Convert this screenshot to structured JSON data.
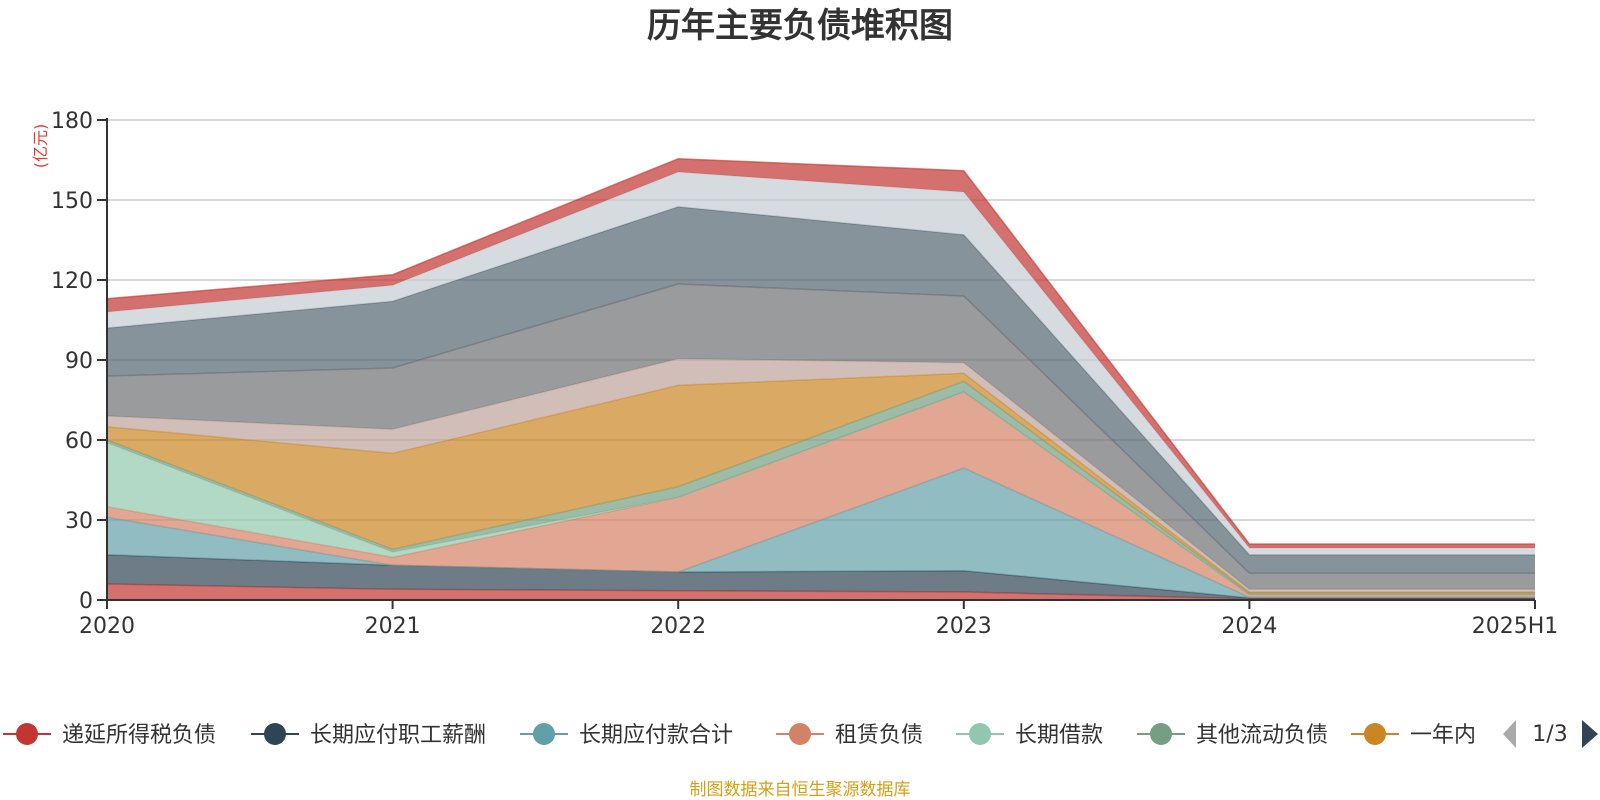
{
  "colors": {
    "grid": "#cccccc",
    "axis": "#333333",
    "source": "#d4a017",
    "unit": "#e53935",
    "page_prev": "#aaaaaa",
    "page_next": "#2f4554"
  },
  "chart_data": {
    "type": "area",
    "stacked": true,
    "title": "历年主要负债堆积图",
    "ylabel": "(亿元)",
    "ylim": [
      0,
      180
    ],
    "yticks": [
      0,
      30,
      60,
      90,
      120,
      150,
      180
    ],
    "grid": true,
    "legend_position": "bottom",
    "x": [
      "2020",
      "2021",
      "2022",
      "2023",
      "2024",
      "2025H1"
    ],
    "series": [
      {
        "name": "递延所得税负债",
        "color": "#c23531",
        "values": [
          6,
          4,
          3.5,
          3,
          0.5,
          0.5
        ]
      },
      {
        "name": "长期应付职工薪酬",
        "color": "#2f4554",
        "values": [
          11,
          9,
          7,
          8,
          0.3,
          0.3
        ]
      },
      {
        "name": "长期应付款合计",
        "color": "#61a0a8",
        "values": [
          14,
          0,
          0,
          38.5,
          0.2,
          0.2
        ]
      },
      {
        "name": "租赁负债",
        "color": "#d48265",
        "values": [
          4,
          3,
          28,
          28.5,
          1,
          1
        ]
      },
      {
        "name": "长期借款",
        "color": "#91c7ae",
        "values": [
          24,
          2,
          0,
          0,
          0,
          0
        ]
      },
      {
        "name": "其他流动负债",
        "color": "#749f83",
        "values": [
          1,
          1,
          4,
          4,
          0.5,
          0.5
        ]
      },
      {
        "name": "一年内",
        "color": "#ca8622",
        "values": [
          5,
          36,
          38,
          3,
          0.5,
          0.5
        ]
      },
      {
        "name": "",
        "color": "#bda29a",
        "values": [
          4,
          9,
          10,
          4,
          1,
          1
        ]
      },
      {
        "name": "",
        "color": "#6e7074",
        "values": [
          15,
          23,
          28,
          25,
          6,
          6
        ]
      },
      {
        "name": "",
        "color": "#546570",
        "values": [
          18,
          25,
          29,
          23,
          7,
          7
        ]
      },
      {
        "name": "",
        "color": "#c4ccd3",
        "values": [
          6,
          6,
          13,
          16,
          2.5,
          2.5
        ]
      },
      {
        "name": "",
        "color": "#c23531",
        "values": [
          5,
          4,
          5,
          8,
          1.5,
          1.5
        ]
      }
    ]
  },
  "legend": {
    "visible_count": 7,
    "page_label": "1/3",
    "prev_icon": "triangle-left-icon",
    "next_icon": "triangle-right-icon"
  },
  "source_note": "制图数据来自恒生聚源数据库"
}
